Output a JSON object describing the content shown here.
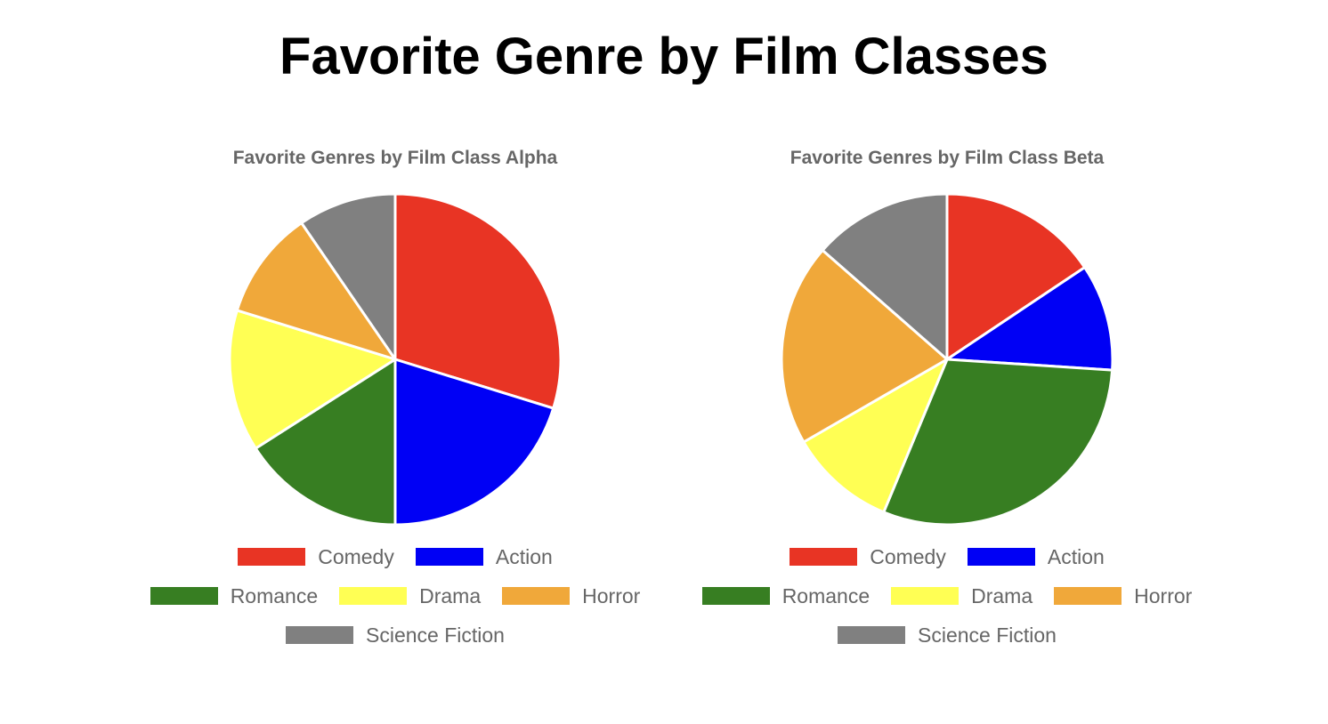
{
  "title": "Favorite Genre by Film Classes",
  "colors": {
    "Comedy": "#E83424",
    "Action": "#0000F5",
    "Romance": "#377E22",
    "Drama": "#FFFF54",
    "Horror": "#F0A83A",
    "Science Fiction": "#808080"
  },
  "legend_rows": [
    [
      0,
      1
    ],
    [
      2,
      3,
      4
    ],
    [
      5
    ]
  ],
  "chart_data": [
    {
      "type": "pie",
      "title": "Favorite Genres by Film Class Alpha",
      "categories": [
        "Comedy",
        "Action",
        "Romance",
        "Drama",
        "Horror",
        "Science Fiction"
      ],
      "values": [
        28,
        19,
        15,
        13,
        10,
        9
      ],
      "start_angle": "12 o'clock",
      "direction": "clockwise",
      "legend": "bottom"
    },
    {
      "type": "pie",
      "title": "Favorite Genres by Film Class Beta",
      "categories": [
        "Comedy",
        "Action",
        "Romance",
        "Drama",
        "Horror",
        "Science Fiction"
      ],
      "values": [
        15,
        10,
        29,
        10,
        19,
        13
      ],
      "start_angle": "12 o'clock",
      "direction": "clockwise",
      "legend": "bottom"
    }
  ]
}
